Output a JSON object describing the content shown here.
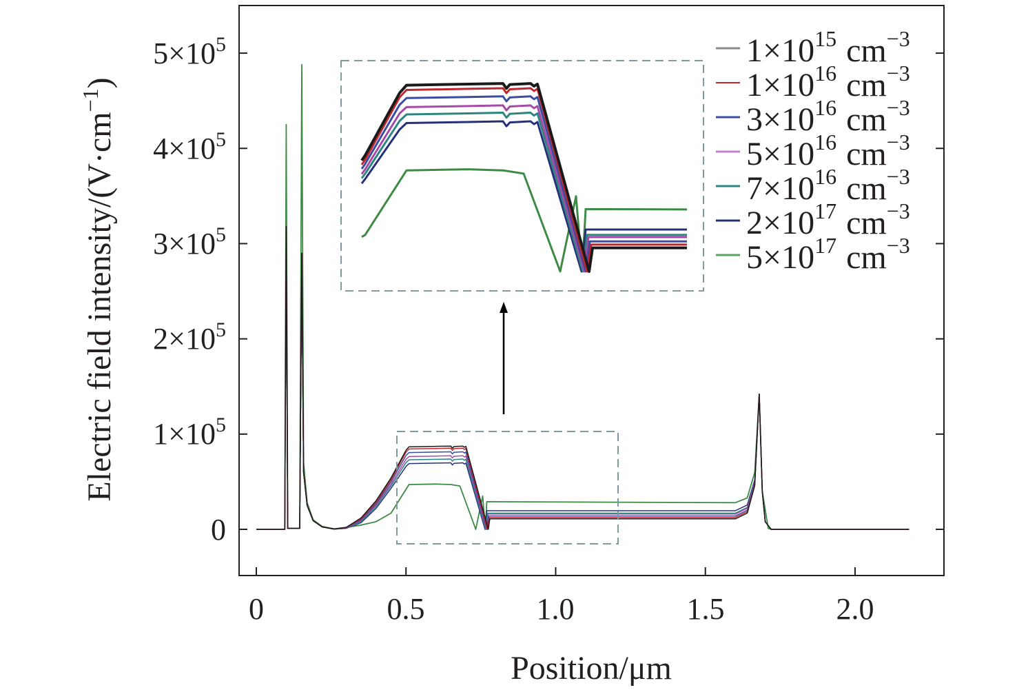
{
  "chart_data": {
    "type": "line",
    "xlabel": "Position/μm",
    "ylabel": {
      "text": "Electric field intensity/(V·cm",
      "exp": "−1",
      "close": ")"
    },
    "xlim": [
      -0.0575,
      2.297
    ],
    "ylim": [
      -48500,
      550000
    ],
    "xticks": [
      {
        "value": 0,
        "label": "0"
      },
      {
        "value": 0.5,
        "label": "0.5"
      },
      {
        "value": 1.0,
        "label": "1.0"
      },
      {
        "value": 1.5,
        "label": "1.5"
      },
      {
        "value": 2.0,
        "label": "2.0"
      }
    ],
    "yticks": [
      {
        "value": 0,
        "base": "0",
        "exp": ""
      },
      {
        "value": 100000,
        "base": "1×10",
        "exp": "5"
      },
      {
        "value": 200000,
        "base": "2×10",
        "exp": "5"
      },
      {
        "value": 300000,
        "base": "3×10",
        "exp": "5"
      },
      {
        "value": 400000,
        "base": "4×10",
        "exp": "5"
      },
      {
        "value": 500000,
        "base": "5×10",
        "exp": "5"
      }
    ],
    "grid": false,
    "legend_position": "top-right",
    "zoom_region": {
      "xlim": [
        0.471,
        1.209
      ],
      "ylim": [
        -15000,
        103000
      ]
    },
    "inset": {
      "xlim": [
        0.415,
        0.941
      ],
      "ylim": [
        -9000,
        98000
      ],
      "data_xrange": [
        0.445,
        0.917
      ]
    },
    "series": [
      {
        "name": "1×10^15 cm^-3",
        "mant": "1×10",
        "exp": "15",
        "unit": "cm",
        "unit_exp": "−3",
        "color": "#1a1a1a",
        "legend_color": "#8a8a8a",
        "points": [
          [
            0,
            0
          ],
          [
            0.095,
            0
          ],
          [
            0.1,
            318000
          ],
          [
            0.105,
            1000
          ],
          [
            0.145,
            1000
          ],
          [
            0.152,
            290000
          ],
          [
            0.158,
            60000
          ],
          [
            0.17,
            25000
          ],
          [
            0.19,
            9000
          ],
          [
            0.22,
            2500
          ],
          [
            0.26,
            300
          ],
          [
            0.3,
            2000
          ],
          [
            0.35,
            12000
          ],
          [
            0.4,
            30000
          ],
          [
            0.45,
            54000
          ],
          [
            0.5,
            83000
          ],
          [
            0.51,
            86600
          ],
          [
            0.6,
            87100
          ],
          [
            0.65,
            87400
          ],
          [
            0.655,
            85100
          ],
          [
            0.66,
            86900
          ],
          [
            0.69,
            87400
          ],
          [
            0.695,
            86100
          ],
          [
            0.7,
            87100
          ],
          [
            0.775,
            0
          ],
          [
            0.78,
            11000
          ],
          [
            1.6,
            11000
          ],
          [
            1.64,
            17000
          ],
          [
            1.665,
            46000
          ],
          [
            1.68,
            142000
          ],
          [
            1.69,
            40000
          ],
          [
            1.7,
            8000
          ],
          [
            1.72,
            0
          ],
          [
            2.18,
            0
          ]
        ]
      },
      {
        "name": "1×10^16 cm^-3",
        "mant": "1×10",
        "exp": "16",
        "unit": "cm",
        "unit_exp": "−3",
        "color": "#c0272d",
        "legend_color": "#c0272d",
        "points": [
          [
            0,
            0
          ],
          [
            0.095,
            0
          ],
          [
            0.1,
            318000
          ],
          [
            0.105,
            1000
          ],
          [
            0.145,
            1000
          ],
          [
            0.152,
            290000
          ],
          [
            0.158,
            60000
          ],
          [
            0.17,
            25000
          ],
          [
            0.19,
            9000
          ],
          [
            0.22,
            2500
          ],
          [
            0.26,
            300
          ],
          [
            0.3,
            1800
          ],
          [
            0.35,
            11000
          ],
          [
            0.4,
            28500
          ],
          [
            0.45,
            52000
          ],
          [
            0.5,
            81000
          ],
          [
            0.51,
            84400
          ],
          [
            0.6,
            84900
          ],
          [
            0.65,
            85200
          ],
          [
            0.655,
            82900
          ],
          [
            0.66,
            84700
          ],
          [
            0.69,
            85200
          ],
          [
            0.695,
            83900
          ],
          [
            0.7,
            84900
          ],
          [
            0.772,
            0
          ],
          [
            0.778,
            12500
          ],
          [
            1.6,
            12500
          ],
          [
            1.64,
            18500
          ],
          [
            1.665,
            47000
          ],
          [
            1.68,
            142000
          ],
          [
            1.69,
            40000
          ],
          [
            1.7,
            8000
          ],
          [
            1.72,
            0
          ],
          [
            2.18,
            0
          ]
        ]
      },
      {
        "name": "3×10^16 cm^-3",
        "mant": "3×10",
        "exp": "16",
        "unit": "cm",
        "unit_exp": "−3",
        "color": "#3a4da0",
        "legend_color": "#3a4da0",
        "points": [
          [
            0,
            0
          ],
          [
            0.095,
            0
          ],
          [
            0.1,
            318000
          ],
          [
            0.105,
            1000
          ],
          [
            0.145,
            1000
          ],
          [
            0.152,
            290000
          ],
          [
            0.158,
            60000
          ],
          [
            0.17,
            25000
          ],
          [
            0.19,
            9000
          ],
          [
            0.22,
            2500
          ],
          [
            0.26,
            300
          ],
          [
            0.3,
            1500
          ],
          [
            0.35,
            10000
          ],
          [
            0.4,
            27000
          ],
          [
            0.45,
            50000
          ],
          [
            0.5,
            77500
          ],
          [
            0.51,
            80600
          ],
          [
            0.6,
            81100
          ],
          [
            0.65,
            81400
          ],
          [
            0.655,
            79100
          ],
          [
            0.66,
            80900
          ],
          [
            0.69,
            81400
          ],
          [
            0.695,
            80100
          ],
          [
            0.7,
            81100
          ],
          [
            0.77,
            0
          ],
          [
            0.776,
            14000
          ],
          [
            1.6,
            14000
          ],
          [
            1.64,
            20000
          ],
          [
            1.665,
            48000
          ],
          [
            1.68,
            142000
          ],
          [
            1.69,
            40000
          ],
          [
            1.7,
            8000
          ],
          [
            1.72,
            0
          ],
          [
            2.18,
            0
          ]
        ]
      },
      {
        "name": "5×10^16 cm^-3",
        "mant": "5×10",
        "exp": "16",
        "unit": "cm",
        "unit_exp": "−3",
        "color": "#a64aa8",
        "legend_color": "#c47fcc",
        "points": [
          [
            0,
            0
          ],
          [
            0.095,
            0
          ],
          [
            0.1,
            318000
          ],
          [
            0.105,
            1000
          ],
          [
            0.145,
            1000
          ],
          [
            0.152,
            290000
          ],
          [
            0.158,
            60000
          ],
          [
            0.17,
            25000
          ],
          [
            0.19,
            9000
          ],
          [
            0.22,
            2500
          ],
          [
            0.26,
            300
          ],
          [
            0.3,
            1300
          ],
          [
            0.35,
            9000
          ],
          [
            0.4,
            25500
          ],
          [
            0.45,
            47500
          ],
          [
            0.5,
            73500
          ],
          [
            0.51,
            76400
          ],
          [
            0.6,
            76900
          ],
          [
            0.65,
            77200
          ],
          [
            0.655,
            74900
          ],
          [
            0.66,
            76700
          ],
          [
            0.69,
            77200
          ],
          [
            0.695,
            75900
          ],
          [
            0.7,
            76900
          ],
          [
            0.768,
            0
          ],
          [
            0.774,
            16000
          ],
          [
            1.6,
            16000
          ],
          [
            1.64,
            22000
          ],
          [
            1.665,
            49000
          ],
          [
            1.68,
            142000
          ],
          [
            1.69,
            40000
          ],
          [
            1.7,
            8000
          ],
          [
            1.72,
            0
          ],
          [
            2.18,
            0
          ]
        ]
      },
      {
        "name": "7×10^16 cm^-3",
        "mant": "7×10",
        "exp": "16",
        "unit": "cm",
        "unit_exp": "−3",
        "color": "#2d8580",
        "legend_color": "#2d8580",
        "points": [
          [
            0,
            0
          ],
          [
            0.095,
            0
          ],
          [
            0.1,
            318000
          ],
          [
            0.105,
            1000
          ],
          [
            0.145,
            1000
          ],
          [
            0.152,
            290000
          ],
          [
            0.158,
            60000
          ],
          [
            0.17,
            25000
          ],
          [
            0.19,
            9000
          ],
          [
            0.22,
            2500
          ],
          [
            0.26,
            300
          ],
          [
            0.3,
            1100
          ],
          [
            0.35,
            8000
          ],
          [
            0.4,
            24000
          ],
          [
            0.45,
            45500
          ],
          [
            0.5,
            70000
          ],
          [
            0.51,
            73000
          ],
          [
            0.6,
            73500
          ],
          [
            0.65,
            73800
          ],
          [
            0.655,
            71500
          ],
          [
            0.66,
            73300
          ],
          [
            0.69,
            73800
          ],
          [
            0.695,
            72500
          ],
          [
            0.7,
            73500
          ],
          [
            0.766,
            0
          ],
          [
            0.772,
            17000
          ],
          [
            1.6,
            17000
          ],
          [
            1.64,
            23000
          ],
          [
            1.665,
            50000
          ],
          [
            1.68,
            142000
          ],
          [
            1.69,
            40000
          ],
          [
            1.7,
            8000
          ],
          [
            1.72,
            0
          ],
          [
            2.18,
            0
          ]
        ]
      },
      {
        "name": "2×10^17 cm^-3",
        "mant": "2×10",
        "exp": "17",
        "unit": "cm",
        "unit_exp": "−3",
        "color": "#26307a",
        "legend_color": "#26307a",
        "points": [
          [
            0,
            0
          ],
          [
            0.095,
            0
          ],
          [
            0.1,
            318000
          ],
          [
            0.105,
            1000
          ],
          [
            0.145,
            1000
          ],
          [
            0.152,
            290000
          ],
          [
            0.158,
            60000
          ],
          [
            0.17,
            25000
          ],
          [
            0.19,
            9000
          ],
          [
            0.22,
            2500
          ],
          [
            0.26,
            300
          ],
          [
            0.3,
            900
          ],
          [
            0.35,
            7000
          ],
          [
            0.4,
            22000
          ],
          [
            0.45,
            43000
          ],
          [
            0.5,
            66000
          ],
          [
            0.51,
            69000
          ],
          [
            0.6,
            69500
          ],
          [
            0.65,
            69800
          ],
          [
            0.655,
            67500
          ],
          [
            0.66,
            69300
          ],
          [
            0.69,
            69800
          ],
          [
            0.695,
            68500
          ],
          [
            0.7,
            69500
          ],
          [
            0.764,
            0
          ],
          [
            0.77,
            19500
          ],
          [
            1.6,
            19500
          ],
          [
            1.64,
            25500
          ],
          [
            1.665,
            52000
          ],
          [
            1.68,
            142000
          ],
          [
            1.69,
            40000
          ],
          [
            1.7,
            8000
          ],
          [
            1.72,
            0
          ],
          [
            2.18,
            0
          ]
        ]
      },
      {
        "name": "5×10^17 cm^-3",
        "mant": "5×10",
        "exp": "17",
        "unit": "cm",
        "unit_exp": "−3",
        "color": "#3d8a45",
        "legend_color": "#5aa65e",
        "points": [
          [
            0,
            0
          ],
          [
            0.095,
            0
          ],
          [
            0.1,
            425000
          ],
          [
            0.105,
            1000
          ],
          [
            0.145,
            1000
          ],
          [
            0.152,
            488000
          ],
          [
            0.158,
            70000
          ],
          [
            0.17,
            28000
          ],
          [
            0.19,
            10000
          ],
          [
            0.22,
            3000
          ],
          [
            0.26,
            500
          ],
          [
            0.3,
            2000
          ],
          [
            0.35,
            4500
          ],
          [
            0.4,
            8000
          ],
          [
            0.45,
            17000
          ],
          [
            0.51,
            47000
          ],
          [
            0.6,
            47500
          ],
          [
            0.65,
            47000
          ],
          [
            0.68,
            45500
          ],
          [
            0.733,
            0
          ],
          [
            0.756,
            35000
          ],
          [
            0.765,
            0
          ],
          [
            0.77,
            29000
          ],
          [
            1.6,
            28000
          ],
          [
            1.64,
            33000
          ],
          [
            1.665,
            60000
          ],
          [
            1.68,
            142000
          ],
          [
            1.69,
            40000
          ],
          [
            1.71,
            1000
          ],
          [
            1.72,
            0
          ],
          [
            2.18,
            0
          ]
        ]
      }
    ]
  }
}
